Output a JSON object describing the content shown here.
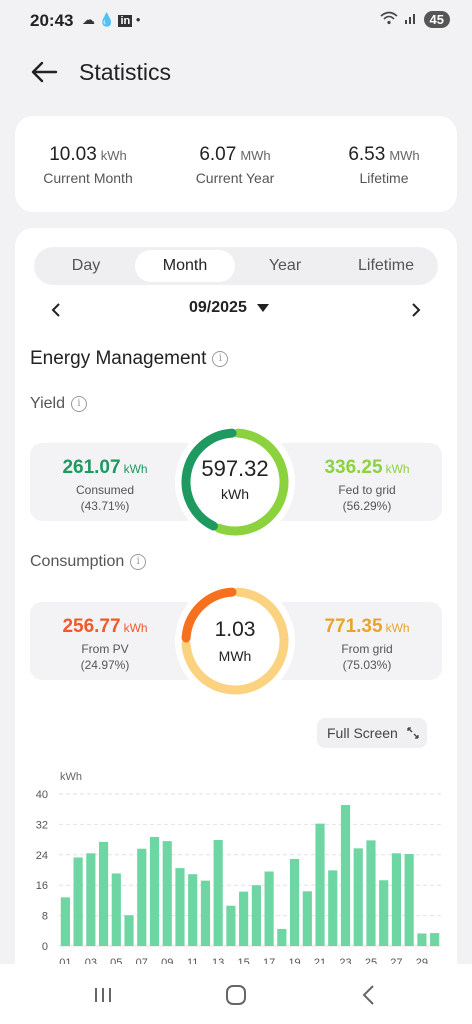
{
  "status": {
    "time": "20:43",
    "battery": "45"
  },
  "header": {
    "title": "Statistics"
  },
  "summary": [
    {
      "value": "10.03",
      "unit": "kWh",
      "label": "Current Month"
    },
    {
      "value": "6.07",
      "unit": "MWh",
      "label": "Current Year"
    },
    {
      "value": "6.53",
      "unit": "MWh",
      "label": "Lifetime"
    }
  ],
  "tabs": [
    "Day",
    "Month",
    "Year",
    "Lifetime"
  ],
  "active_tab": "Month",
  "date": "09/2025",
  "section_title": "Energy Management",
  "yield": {
    "title": "Yield",
    "total_value": "597.32",
    "total_unit": "kWh",
    "left": {
      "value": "261.07",
      "unit": "kWh",
      "label": "Consumed",
      "pct": "(43.71%)",
      "fraction": 0.4371
    },
    "right": {
      "value": "336.25",
      "unit": "kWh",
      "label": "Fed to grid",
      "pct": "(56.29%)"
    },
    "colors": {
      "left": "#1e9960",
      "right": "#8bd23e"
    }
  },
  "consumption": {
    "title": "Consumption",
    "total_value": "1.03",
    "total_unit": "MWh",
    "left": {
      "value": "256.77",
      "unit": "kWh",
      "label": "From PV",
      "pct": "(24.97%)",
      "fraction": 0.2497
    },
    "right": {
      "value": "771.35",
      "unit": "kWh",
      "label": "From grid",
      "pct": "(75.03%)"
    },
    "colors": {
      "left": "#f5701f",
      "right": "#fbd27f"
    }
  },
  "fullscreen_label": "Full Screen",
  "chart_data": {
    "type": "bar",
    "ylabel": "kWh",
    "ylim": [
      0,
      40
    ],
    "yticks": [
      0,
      8,
      16,
      24,
      32,
      40
    ],
    "xtick_labels": [
      "01",
      "03",
      "05",
      "07",
      "09",
      "11",
      "13",
      "15",
      "17",
      "19",
      "21",
      "23",
      "25",
      "27",
      "29"
    ],
    "categories": [
      "01",
      "02",
      "03",
      "04",
      "05",
      "06",
      "07",
      "08",
      "09",
      "10",
      "11",
      "12",
      "13",
      "14",
      "15",
      "16",
      "17",
      "18",
      "19",
      "20",
      "21",
      "22",
      "23",
      "24",
      "25",
      "26",
      "27",
      "28",
      "29",
      "30"
    ],
    "values": [
      12.8,
      23.3,
      24.4,
      27.4,
      19.1,
      8.1,
      25.6,
      28.7,
      27.6,
      20.5,
      18.9,
      17.2,
      27.9,
      10.6,
      14.3,
      16.0,
      19.6,
      4.5,
      22.9,
      14.4,
      32.2,
      19.9,
      37.1,
      25.7,
      27.8,
      17.3,
      24.4,
      24.2,
      3.3,
      3.4
    ],
    "color": "#6ed6a2",
    "grid": true
  }
}
